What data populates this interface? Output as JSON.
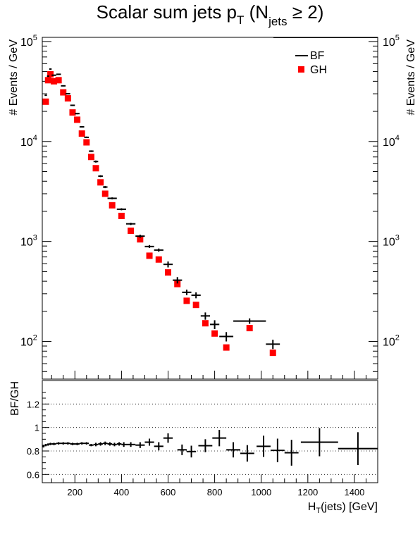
{
  "chart_data": [
    {
      "type": "scatter",
      "title_main": "Scalar sum jets p",
      "title_sub_T": "T",
      "title_open": " (N",
      "title_sub_jets": "jets",
      "title_close": " ≥ 2)",
      "ylabel": "# Events / GeV",
      "yscale": "log",
      "xlim": [
        60,
        1500
      ],
      "ylim": [
        42,
        110000
      ],
      "yticks": [
        {
          "value": 100,
          "base": "10",
          "exp": "2"
        },
        {
          "value": 1000,
          "base": "10",
          "exp": "3"
        },
        {
          "value": 10000,
          "base": "10",
          "exp": "4"
        },
        {
          "value": 100000,
          "base": "10",
          "exp": "5"
        }
      ],
      "legend": {
        "position": "top-right",
        "entries": [
          "BF",
          "GH"
        ]
      },
      "series": [
        {
          "name": "BF",
          "marker": "cross",
          "color": "#000000",
          "points": [
            {
              "x": 75,
              "xerr": 5,
              "y": 29000,
              "yerr": 400
            },
            {
              "x": 85,
              "xerr": 5,
              "y": 45000,
              "yerr": 500
            },
            {
              "x": 95,
              "xerr": 5,
              "y": 53000,
              "yerr": 600
            },
            {
              "x": 110,
              "xerr": 10,
              "y": 46000,
              "yerr": 500
            },
            {
              "x": 130,
              "xerr": 10,
              "y": 47000,
              "yerr": 500
            },
            {
              "x": 150,
              "xerr": 10,
              "y": 36000,
              "yerr": 400
            },
            {
              "x": 170,
              "xerr": 10,
              "y": 30000,
              "yerr": 400
            },
            {
              "x": 190,
              "xerr": 10,
              "y": 23000,
              "yerr": 300
            },
            {
              "x": 210,
              "xerr": 10,
              "y": 19000,
              "yerr": 300
            },
            {
              "x": 230,
              "xerr": 10,
              "y": 14000,
              "yerr": 200
            },
            {
              "x": 250,
              "xerr": 10,
              "y": 11000,
              "yerr": 200
            },
            {
              "x": 270,
              "xerr": 10,
              "y": 8000,
              "yerr": 150
            },
            {
              "x": 290,
              "xerr": 10,
              "y": 6300,
              "yerr": 150
            },
            {
              "x": 310,
              "xerr": 10,
              "y": 4500,
              "yerr": 100
            },
            {
              "x": 330,
              "xerr": 10,
              "y": 3500,
              "yerr": 90
            },
            {
              "x": 360,
              "xerr": 20,
              "y": 2700,
              "yerr": 60
            },
            {
              "x": 400,
              "xerr": 20,
              "y": 2100,
              "yerr": 50
            },
            {
              "x": 440,
              "xerr": 20,
              "y": 1500,
              "yerr": 40
            },
            {
              "x": 480,
              "xerr": 20,
              "y": 1130,
              "yerr": 40
            },
            {
              "x": 520,
              "xerr": 20,
              "y": 890,
              "yerr": 30
            },
            {
              "x": 560,
              "xerr": 20,
              "y": 820,
              "yerr": 30
            },
            {
              "x": 600,
              "xerr": 20,
              "y": 590,
              "yerr": 40
            },
            {
              "x": 640,
              "xerr": 20,
              "y": 410,
              "yerr": 30
            },
            {
              "x": 680,
              "xerr": 20,
              "y": 310,
              "yerr": 20
            },
            {
              "x": 720,
              "xerr": 20,
              "y": 290,
              "yerr": 20
            },
            {
              "x": 760,
              "xerr": 20,
              "y": 180,
              "yerr": 15
            },
            {
              "x": 800,
              "xerr": 20,
              "y": 148,
              "yerr": 15
            },
            {
              "x": 850,
              "xerr": 30,
              "y": 112,
              "yerr": 12
            },
            {
              "x": 950,
              "xerr": 70,
              "y": 160,
              "yerr": 10
            },
            {
              "x": 1050,
              "xerr": 30,
              "y": 94,
              "yerr": 10
            }
          ]
        },
        {
          "name": "GH",
          "marker": "square",
          "color": "#ff0000",
          "points": [
            {
              "x": 75,
              "y": 25000
            },
            {
              "x": 85,
              "y": 41000
            },
            {
              "x": 95,
              "y": 47000
            },
            {
              "x": 110,
              "y": 40000
            },
            {
              "x": 130,
              "y": 41000
            },
            {
              "x": 150,
              "y": 31000
            },
            {
              "x": 170,
              "y": 27000
            },
            {
              "x": 190,
              "y": 19500
            },
            {
              "x": 210,
              "y": 16500
            },
            {
              "x": 230,
              "y": 12000
            },
            {
              "x": 250,
              "y": 9800
            },
            {
              "x": 270,
              "y": 7000
            },
            {
              "x": 290,
              "y": 5400
            },
            {
              "x": 310,
              "y": 3900
            },
            {
              "x": 330,
              "y": 3000
            },
            {
              "x": 360,
              "y": 2300
            },
            {
              "x": 400,
              "y": 1800
            },
            {
              "x": 440,
              "y": 1280
            },
            {
              "x": 480,
              "y": 1050
            },
            {
              "x": 520,
              "y": 720
            },
            {
              "x": 560,
              "y": 660
            },
            {
              "x": 600,
              "y": 490
            },
            {
              "x": 640,
              "y": 375
            },
            {
              "x": 680,
              "y": 255
            },
            {
              "x": 720,
              "y": 232
            },
            {
              "x": 760,
              "y": 152
            },
            {
              "x": 800,
              "y": 120
            },
            {
              "x": 850,
              "y": 87
            },
            {
              "x": 950,
              "y": 136
            },
            {
              "x": 1050,
              "y": 77
            }
          ]
        }
      ]
    },
    {
      "type": "scatter",
      "ylabel": "BF/GH",
      "xlabel_pre": "H",
      "xlabel_sub": "T",
      "xlabel_post": "(jets) [GeV]",
      "xlim": [
        60,
        1500
      ],
      "ylim": [
        0.53,
        1.4
      ],
      "xticks": [
        "200",
        "400",
        "600",
        "800",
        "1000",
        "1200",
        "1400"
      ],
      "xtick_values": [
        200,
        400,
        600,
        800,
        1000,
        1200,
        1400
      ],
      "yticks": [
        "0.6",
        "0.8",
        "1",
        "1.2"
      ],
      "ytick_values": [
        0.6,
        0.8,
        1.0,
        1.2
      ],
      "reference_lines": [
        0.6,
        0.8,
        1.0,
        1.2
      ],
      "series": [
        {
          "name": "BF/GH",
          "marker": "cross",
          "color": "#000000",
          "points": [
            {
              "x": 65,
              "xerr": 5,
              "y": 0.84,
              "yerr": 0.01
            },
            {
              "x": 75,
              "xerr": 5,
              "y": 0.85,
              "yerr": 0.01
            },
            {
              "x": 85,
              "xerr": 5,
              "y": 0.855,
              "yerr": 0.01
            },
            {
              "x": 95,
              "xerr": 5,
              "y": 0.86,
              "yerr": 0.01
            },
            {
              "x": 110,
              "xerr": 10,
              "y": 0.86,
              "yerr": 0.01
            },
            {
              "x": 130,
              "xerr": 10,
              "y": 0.865,
              "yerr": 0.01
            },
            {
              "x": 150,
              "xerr": 10,
              "y": 0.865,
              "yerr": 0.01
            },
            {
              "x": 170,
              "xerr": 10,
              "y": 0.865,
              "yerr": 0.01
            },
            {
              "x": 190,
              "xerr": 10,
              "y": 0.86,
              "yerr": 0.01
            },
            {
              "x": 210,
              "xerr": 10,
              "y": 0.86,
              "yerr": 0.01
            },
            {
              "x": 230,
              "xerr": 10,
              "y": 0.865,
              "yerr": 0.01
            },
            {
              "x": 250,
              "xerr": 10,
              "y": 0.865,
              "yerr": 0.01
            },
            {
              "x": 270,
              "xerr": 10,
              "y": 0.85,
              "yerr": 0.01
            },
            {
              "x": 290,
              "xerr": 10,
              "y": 0.855,
              "yerr": 0.015
            },
            {
              "x": 310,
              "xerr": 10,
              "y": 0.86,
              "yerr": 0.015
            },
            {
              "x": 330,
              "xerr": 10,
              "y": 0.865,
              "yerr": 0.015
            },
            {
              "x": 350,
              "xerr": 10,
              "y": 0.86,
              "yerr": 0.015
            },
            {
              "x": 370,
              "xerr": 10,
              "y": 0.855,
              "yerr": 0.015
            },
            {
              "x": 390,
              "xerr": 10,
              "y": 0.86,
              "yerr": 0.015
            },
            {
              "x": 410,
              "xerr": 10,
              "y": 0.855,
              "yerr": 0.02
            },
            {
              "x": 440,
              "xerr": 20,
              "y": 0.855,
              "yerr": 0.02
            },
            {
              "x": 480,
              "xerr": 20,
              "y": 0.85,
              "yerr": 0.025
            },
            {
              "x": 520,
              "xerr": 20,
              "y": 0.875,
              "yerr": 0.03
            },
            {
              "x": 560,
              "xerr": 20,
              "y": 0.84,
              "yerr": 0.035
            },
            {
              "x": 600,
              "xerr": 20,
              "y": 0.91,
              "yerr": 0.04
            },
            {
              "x": 660,
              "xerr": 20,
              "y": 0.81,
              "yerr": 0.045
            },
            {
              "x": 700,
              "xerr": 20,
              "y": 0.795,
              "yerr": 0.05
            },
            {
              "x": 760,
              "xerr": 30,
              "y": 0.845,
              "yerr": 0.055
            },
            {
              "x": 820,
              "xerr": 30,
              "y": 0.91,
              "yerr": 0.07
            },
            {
              "x": 880,
              "xerr": 30,
              "y": 0.81,
              "yerr": 0.065
            },
            {
              "x": 940,
              "xerr": 30,
              "y": 0.78,
              "yerr": 0.07
            },
            {
              "x": 1010,
              "xerr": 30,
              "y": 0.84,
              "yerr": 0.09
            },
            {
              "x": 1070,
              "xerr": 30,
              "y": 0.805,
              "yerr": 0.1
            },
            {
              "x": 1130,
              "xerr": 30,
              "y": 0.785,
              "yerr": 0.11
            },
            {
              "x": 1250,
              "xerr": 80,
              "y": 0.875,
              "yerr": 0.12
            },
            {
              "x": 1415,
              "xerr": 85,
              "y": 0.82,
              "yerr": 0.14
            }
          ]
        }
      ]
    }
  ]
}
